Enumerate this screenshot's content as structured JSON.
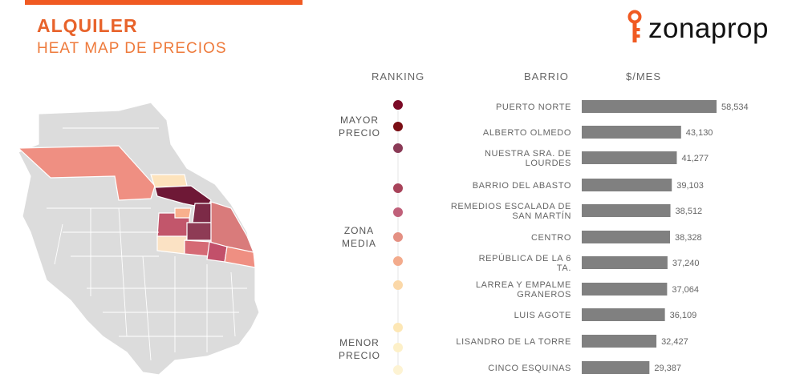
{
  "header": {
    "title": "ALQUILER",
    "subtitle": "HEAT MAP DE PRECIOS",
    "logo_text": "zonaprop"
  },
  "columns": {
    "ranking": "RANKING",
    "barrio": "BARRIO",
    "price": "$/MES"
  },
  "zones": {
    "high": [
      "MAYOR",
      "PRECIO"
    ],
    "mid": [
      "ZONA",
      "MEDIA"
    ],
    "low": [
      "MENOR",
      "PRECIO"
    ]
  },
  "colors": {
    "accent": "#f05a22",
    "bar": "#808080"
  },
  "chart_data": {
    "type": "bar",
    "orientation": "horizontal",
    "xlim": [
      0,
      60000
    ],
    "categories": [
      [
        "PUERTO NORTE"
      ],
      [
        "ALBERTO OLMEDO"
      ],
      [
        "NUESTRA SRA. DE",
        "LOURDES"
      ],
      [
        "BARRIO DEL ABASTO"
      ],
      [
        "REMEDIOS ESCALADA DE",
        "SAN MARTÍN"
      ],
      [
        "CENTRO"
      ],
      [
        "REPÚBLICA DE LA 6",
        "TA."
      ],
      [
        "LARREA Y EMPALME",
        "GRANEROS"
      ],
      [
        "LUIS AGOTE"
      ],
      [
        "LISANDRO DE LA TORRE"
      ],
      [
        "CINCO ESQUINAS"
      ]
    ],
    "values": [
      58534,
      43130,
      41277,
      39103,
      38512,
      38328,
      37240,
      37064,
      36109,
      32427,
      29387
    ],
    "value_labels": [
      "58,534",
      "43,130",
      "41,277",
      "39,103",
      "38,512",
      "38,328",
      "37,240",
      "37,064",
      "36,109",
      "32,427",
      "29,387"
    ],
    "rank_colors": [
      "#7b0a26",
      "#7a0e14",
      "#8a3a56",
      "#a8435a",
      "#c0607a",
      "#e49083",
      "#f3ab8c",
      "#fbd8a8",
      "#fde7b5",
      "#fdf0c8",
      "#fdf3d3"
    ],
    "extra_dots": [
      "#fde7b5"
    ]
  }
}
